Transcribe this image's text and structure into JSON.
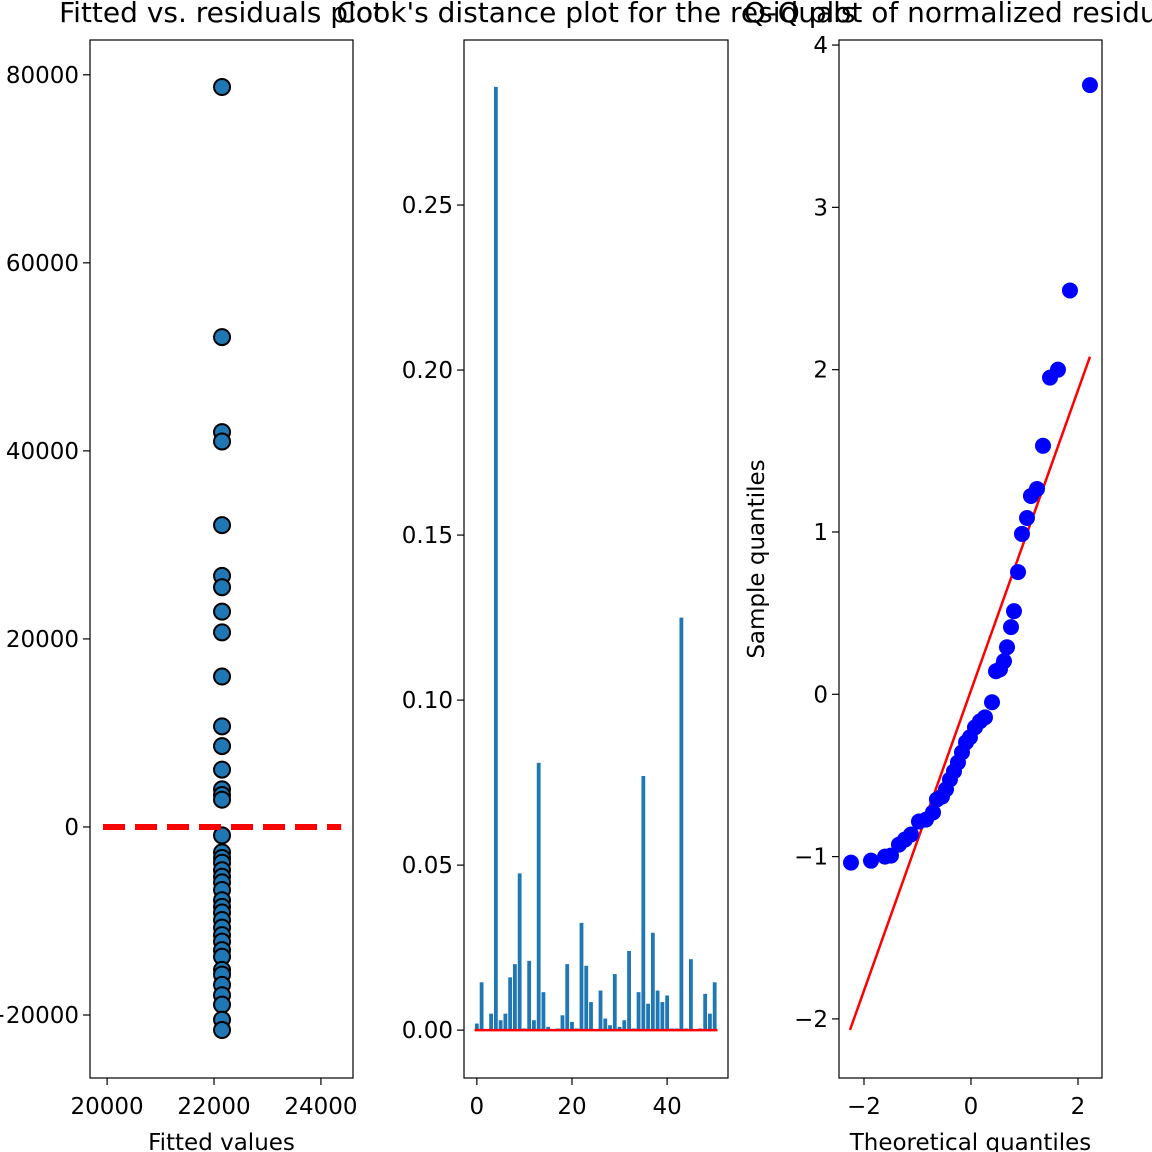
{
  "chart_data": [
    {
      "type": "scatter",
      "title": "Fitted vs. residuals plot",
      "xlabel": "Fitted values",
      "x": [
        22150,
        22150,
        22150,
        22150,
        22150,
        22150,
        22150,
        22150,
        22150,
        22150,
        22150,
        22150,
        22150,
        22150,
        22150,
        22150,
        22150,
        22150,
        22150,
        22150,
        22150,
        22150,
        22150,
        22150,
        22150,
        22150,
        22150,
        22150,
        22150,
        22150,
        22150,
        22150,
        22150,
        22150,
        22150,
        22150,
        22150,
        22150,
        22150,
        22150
      ],
      "y": [
        78700,
        52100,
        42000,
        41000,
        32100,
        26700,
        25500,
        22900,
        20700,
        16000,
        10700,
        8600,
        6100,
        4000,
        3400,
        2900,
        -900,
        -2700,
        -3300,
        -3800,
        -4600,
        -5300,
        -5900,
        -6700,
        -7800,
        -8500,
        -9100,
        -9900,
        -10700,
        -11500,
        -12200,
        -13100,
        -13800,
        -15200,
        -15700,
        -16800,
        -17900,
        -18900,
        -20500,
        -21600
      ],
      "color": "#1f77b4",
      "edgecolor": "#000000",
      "xlim": [
        19680,
        24600
      ],
      "ylim": [
        -26700,
        83700
      ],
      "xticks": [
        20000,
        22000,
        24000
      ],
      "yticks": [
        {
          "value": -20000,
          "label": "−20000"
        },
        0,
        20000,
        40000,
        60000,
        80000
      ],
      "hline": {
        "y": 0,
        "color": "#ff0000",
        "style": "dashed"
      }
    },
    {
      "type": "bar",
      "title": "Cook's distance plot for the residuals",
      "x": [
        0,
        1,
        2,
        3,
        4,
        5,
        6,
        7,
        8,
        9,
        10,
        11,
        12,
        13,
        14,
        15,
        16,
        17,
        18,
        19,
        20,
        21,
        22,
        23,
        24,
        25,
        26,
        27,
        28,
        29,
        30,
        31,
        32,
        33,
        34,
        35,
        36,
        37,
        38,
        39,
        40,
        41,
        42,
        43,
        44,
        45,
        46,
        47,
        48,
        49,
        50
      ],
      "values": [
        0.002,
        0.0145,
        0.0001,
        0.005,
        0.2858,
        0.003,
        0.005,
        0.016,
        0.02,
        0.0475,
        0.0005,
        0.021,
        0.003,
        0.081,
        0.0115,
        0.001,
        0.0003,
        0.0005,
        0.0045,
        0.02,
        0.0025,
        0.0005,
        0.0325,
        0.0195,
        0.0085,
        0.0003,
        0.012,
        0.0035,
        0.0015,
        0.017,
        0.001,
        0.003,
        0.024,
        0.0005,
        0.0115,
        0.077,
        0.008,
        0.0295,
        0.012,
        0.0085,
        0.0105,
        0.0005,
        0.0005,
        0.125,
        0.0005,
        0.0215,
        0.0003,
        0.0005,
        0.011,
        0.005,
        0.0145
      ],
      "color": "#1f77b4",
      "xlim": [
        -2.7,
        52.8
      ],
      "ylim": [
        -0.0145,
        0.3
      ],
      "xticks": [
        0,
        20,
        40
      ],
      "yticks": [
        {
          "value": 0,
          "label": "0.00"
        },
        {
          "value": 0.05,
          "label": "0.05"
        },
        {
          "value": 0.1,
          "label": "0.10"
        },
        {
          "value": 0.15,
          "label": "0.15"
        },
        {
          "value": 0.2,
          "label": "0.20"
        },
        {
          "value": 0.25,
          "label": "0.25"
        }
      ],
      "hline": {
        "y": 0,
        "color": "#ff0000",
        "style": "solid"
      }
    },
    {
      "type": "scatter",
      "title": "Q-Q plot of normalized residuals",
      "xlabel": "Theoretical quantiles",
      "ylabel": "Sample quantiles",
      "x": [
        -2.243,
        -1.869,
        -1.607,
        -1.495,
        -1.346,
        -1.234,
        -1.121,
        -0.972,
        -0.841,
        -0.71,
        -0.636,
        -0.542,
        -0.467,
        -0.393,
        -0.318,
        -0.243,
        -0.168,
        -0.093,
        -0.019,
        0.075,
        0.168,
        0.262,
        0.393,
        0.467,
        0.542,
        0.617,
        0.673,
        0.748,
        0.804,
        0.879,
        0.953,
        1.047,
        1.121,
        1.234,
        1.346,
        1.477,
        1.626,
        1.85,
        2.224
      ],
      "y": [
        -1.037,
        -1.025,
        -1.0,
        -0.994,
        -0.926,
        -0.895,
        -0.864,
        -0.784,
        -0.772,
        -0.728,
        -0.648,
        -0.63,
        -0.586,
        -0.525,
        -0.475,
        -0.42,
        -0.358,
        -0.296,
        -0.265,
        -0.204,
        -0.167,
        -0.142,
        -0.049,
        0.142,
        0.154,
        0.204,
        0.29,
        0.414,
        0.512,
        0.753,
        0.988,
        1.086,
        1.222,
        1.265,
        1.531,
        1.951,
        2.0,
        2.488,
        3.753
      ],
      "color": "#0000ff",
      "line": {
        "x": [
          -2.262,
          2.224
        ],
        "y": [
          -2.068,
          2.08
        ],
        "color": "#ff0000"
      },
      "xlim": [
        -2.467,
        2.449
      ],
      "ylim": [
        -2.364,
        4.031
      ],
      "xticks": [
        {
          "value": -2,
          "label": "−2"
        },
        0,
        2
      ],
      "yticks": [
        {
          "value": -2,
          "label": "−2"
        },
        {
          "value": -1,
          "label": "−1"
        },
        0,
        1,
        2,
        3,
        4
      ]
    }
  ]
}
